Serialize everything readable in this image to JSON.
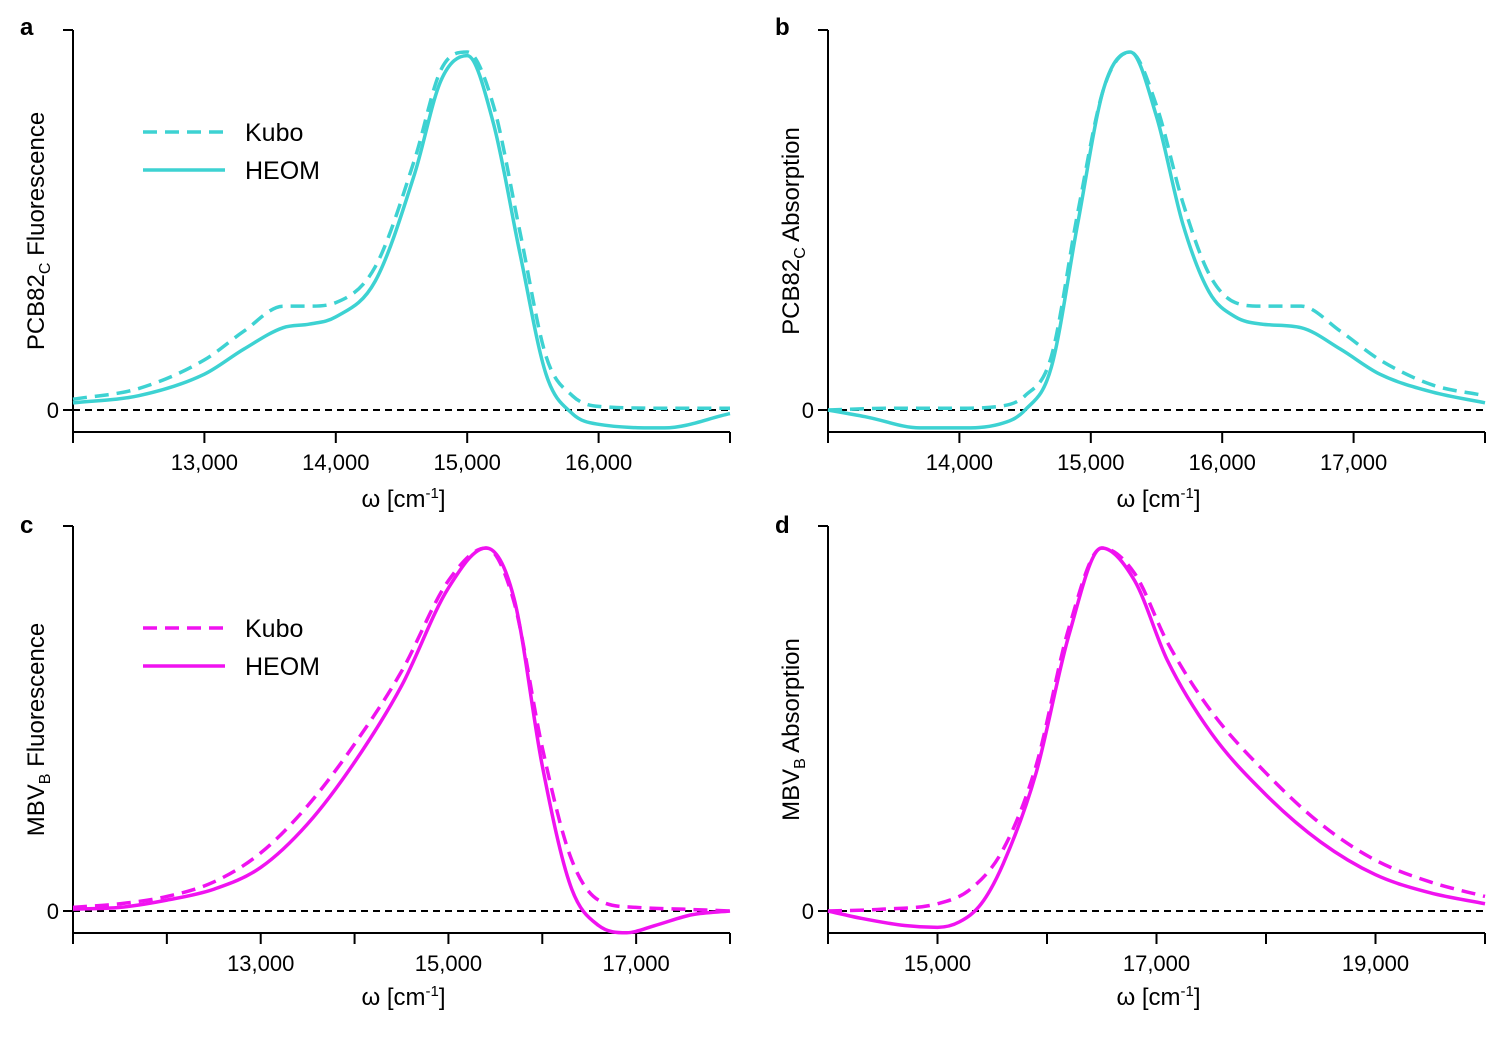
{
  "colors": {
    "cyan": "#3dd2d2",
    "magenta": "#f012f0",
    "axis": "#000000",
    "zero_line": "#000000"
  },
  "chart_data": [
    {
      "id": "a",
      "type": "line",
      "panel_letter": "a",
      "ylabel_main": "PCB82",
      "ylabel_sub": "C",
      "ylabel_rest": " Fluorescence",
      "xlabel_main": "ω [cm",
      "xlabel_sup": "-1",
      "xlabel_end": "]",
      "xlim": [
        12000,
        17000
      ],
      "ylim": [
        -0.05,
        1.3
      ],
      "xticks": [
        12000,
        13000,
        14000,
        15000,
        16000,
        17000
      ],
      "xtick_labels": [
        "",
        "13,000",
        "14,000",
        "15,000",
        "16,000",
        ""
      ],
      "ytick_label": "0",
      "color": "#3dd2d2",
      "legend": {
        "show": true,
        "location": "upper-left",
        "entries": [
          "Kubo",
          "HEOM"
        ]
      },
      "series": [
        {
          "name": "Kubo",
          "style": "dashed",
          "x": [
            12000,
            12500,
            13000,
            13300,
            13600,
            13800,
            14000,
            14300,
            14600,
            14800,
            15000,
            15200,
            15400,
            15600,
            15800,
            16000,
            16500,
            17000
          ],
          "y": [
            0.03,
            0.06,
            0.14,
            0.22,
            0.29,
            0.29,
            0.3,
            0.4,
            0.7,
            0.95,
            1.0,
            0.85,
            0.5,
            0.15,
            0.04,
            0.01,
            0.005,
            0.005
          ]
        },
        {
          "name": "HEOM",
          "style": "solid",
          "x": [
            12000,
            12500,
            13000,
            13300,
            13600,
            13800,
            14000,
            14300,
            14600,
            14800,
            15000,
            15200,
            15400,
            15600,
            15800,
            16000,
            16500,
            17000
          ],
          "y": [
            0.02,
            0.04,
            0.1,
            0.17,
            0.23,
            0.24,
            0.26,
            0.36,
            0.66,
            0.92,
            0.99,
            0.8,
            0.44,
            0.1,
            -0.01,
            -0.04,
            -0.05,
            -0.01
          ]
        }
      ]
    },
    {
      "id": "b",
      "type": "line",
      "panel_letter": "b",
      "ylabel_main": "PCB82",
      "ylabel_sub": "C",
      "ylabel_rest": " Absorption",
      "xlabel_main": "ω [cm",
      "xlabel_sup": "-1",
      "xlabel_end": "]",
      "xlim": [
        13000,
        18000
      ],
      "ylim": [
        -0.05,
        1.3
      ],
      "xticks": [
        13000,
        14000,
        15000,
        16000,
        17000,
        18000
      ],
      "xtick_labels": [
        "",
        "14,000",
        "15,000",
        "16,000",
        "17,000",
        ""
      ],
      "ytick_label": "0",
      "color": "#3dd2d2",
      "legend": {
        "show": false
      },
      "series": [
        {
          "name": "Kubo",
          "style": "dashed",
          "x": [
            13000,
            13500,
            14000,
            14300,
            14500,
            14700,
            14900,
            15100,
            15300,
            15500,
            15700,
            15900,
            16100,
            16300,
            16600,
            16900,
            17200,
            17600,
            18000
          ],
          "y": [
            0.0,
            0.005,
            0.005,
            0.01,
            0.04,
            0.15,
            0.55,
            0.9,
            1.0,
            0.85,
            0.58,
            0.38,
            0.3,
            0.29,
            0.29,
            0.22,
            0.14,
            0.07,
            0.04
          ]
        },
        {
          "name": "HEOM",
          "style": "solid",
          "x": [
            13000,
            13300,
            13700,
            14000,
            14300,
            14500,
            14700,
            14900,
            15100,
            15300,
            15500,
            15700,
            15900,
            16100,
            16300,
            16600,
            16900,
            17200,
            17600,
            18000
          ],
          "y": [
            0.0,
            -0.02,
            -0.05,
            -0.05,
            -0.04,
            0.0,
            0.12,
            0.52,
            0.9,
            1.0,
            0.82,
            0.52,
            0.33,
            0.26,
            0.24,
            0.23,
            0.17,
            0.1,
            0.05,
            0.02
          ]
        }
      ]
    },
    {
      "id": "c",
      "type": "line",
      "panel_letter": "c",
      "ylabel_main": "MBV",
      "ylabel_sub": "B",
      "ylabel_rest": " Fluorescence",
      "xlabel_main": "ω [cm",
      "xlabel_sup": "-1",
      "xlabel_end": "]",
      "xlim": [
        11000,
        18000
      ],
      "ylim": [
        -0.05,
        1.3
      ],
      "xticks": [
        11000,
        12000,
        13000,
        14000,
        15000,
        16000,
        17000,
        18000
      ],
      "xtick_labels": [
        "",
        "",
        "13,000",
        "",
        "15,000",
        "",
        "17,000",
        ""
      ],
      "ytick_label": "0",
      "color": "#f012f0",
      "legend": {
        "show": true,
        "location": "upper-left",
        "entries": [
          "Kubo",
          "HEOM"
        ]
      },
      "series": [
        {
          "name": "Kubo",
          "style": "dashed",
          "x": [
            11000,
            11500,
            12000,
            12500,
            13000,
            13500,
            14000,
            14500,
            15000,
            15400,
            15700,
            16000,
            16300,
            16600,
            17000,
            17500,
            18000
          ],
          "y": [
            0.01,
            0.02,
            0.04,
            0.08,
            0.16,
            0.29,
            0.46,
            0.66,
            0.91,
            1.0,
            0.85,
            0.45,
            0.15,
            0.03,
            0.01,
            0.005,
            0.0
          ]
        },
        {
          "name": "HEOM",
          "style": "solid",
          "x": [
            11000,
            11500,
            12000,
            12500,
            13000,
            13500,
            14000,
            14500,
            15000,
            15400,
            15700,
            16000,
            16300,
            16600,
            16900,
            17200,
            17600,
            18000
          ],
          "y": [
            0.005,
            0.01,
            0.03,
            0.06,
            0.12,
            0.24,
            0.41,
            0.62,
            0.89,
            1.0,
            0.86,
            0.4,
            0.07,
            -0.04,
            -0.06,
            -0.04,
            -0.01,
            0.0
          ]
        }
      ]
    },
    {
      "id": "d",
      "type": "line",
      "panel_letter": "d",
      "ylabel_main": "MBV",
      "ylabel_sub": "B",
      "ylabel_rest": " Absorption",
      "xlabel_main": "ω [cm",
      "xlabel_sup": "-1",
      "xlabel_end": "]",
      "xlim": [
        14000,
        20000
      ],
      "ylim": [
        -0.05,
        1.3
      ],
      "xticks": [
        14000,
        15000,
        16000,
        17000,
        18000,
        19000,
        20000
      ],
      "xtick_labels": [
        "",
        "15,000",
        "",
        "17,000",
        "",
        "19,000",
        ""
      ],
      "ytick_label": "0",
      "color": "#f012f0",
      "legend": {
        "show": false
      },
      "series": [
        {
          "name": "Kubo",
          "style": "dashed",
          "x": [
            14000,
            14500,
            15000,
            15300,
            15600,
            15900,
            16200,
            16500,
            16800,
            17100,
            17500,
            18000,
            18500,
            19000,
            19500,
            20000
          ],
          "y": [
            0.0,
            0.005,
            0.02,
            0.06,
            0.17,
            0.4,
            0.78,
            1.0,
            0.93,
            0.74,
            0.55,
            0.38,
            0.24,
            0.14,
            0.08,
            0.04
          ]
        },
        {
          "name": "HEOM",
          "style": "solid",
          "x": [
            14000,
            14300,
            14700,
            15000,
            15200,
            15400,
            15600,
            15900,
            16200,
            16500,
            16800,
            17100,
            17500,
            18000,
            18500,
            19000,
            19500,
            20000
          ],
          "y": [
            0.0,
            -0.02,
            -0.04,
            -0.045,
            -0.03,
            0.02,
            0.13,
            0.38,
            0.76,
            1.0,
            0.91,
            0.69,
            0.49,
            0.32,
            0.19,
            0.1,
            0.05,
            0.02
          ]
        }
      ]
    }
  ]
}
